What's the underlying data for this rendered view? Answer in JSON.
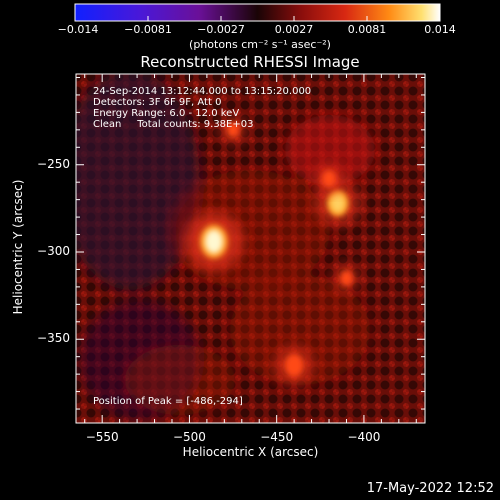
{
  "colorbar": {
    "tick_labels": [
      "-0.014",
      "-0.0081",
      "-0.0027",
      "0.0027",
      "0.0081",
      "0.014"
    ],
    "units_label": "(photons cm⁻² s⁻¹ asec⁻²)",
    "range": [
      -0.014,
      0.014
    ],
    "colors": [
      "#1020ff",
      "#7a18b4",
      "#1a0406",
      "#c81a10",
      "#ff8a14",
      "#ffffff"
    ]
  },
  "chart_data": {
    "type": "heatmap",
    "title": "Reconstructed RHESSI Image",
    "xlabel": "Heliocentric X (arcsec)",
    "ylabel": "Heliocentric Y (arcsec)",
    "xlim": [
      -565,
      -365
    ],
    "ylim": [
      -398,
      -198
    ],
    "xticks": [
      -550,
      -500,
      -450,
      -400
    ],
    "yticks": [
      -250,
      -300,
      -350
    ],
    "xtick_labels": [
      "−550",
      "−500",
      "−450",
      "−400"
    ],
    "ytick_labels": [
      "−250",
      "−300",
      "−350"
    ],
    "sources": [
      {
        "x": -486,
        "y": -294,
        "value": 0.014
      },
      {
        "x": -415,
        "y": -272,
        "value": 0.0095
      },
      {
        "x": -420,
        "y": -258,
        "value": 0.0045
      },
      {
        "x": -440,
        "y": -365,
        "value": 0.0075
      },
      {
        "x": -475,
        "y": -230,
        "value": 0.0035
      },
      {
        "x": -410,
        "y": -315,
        "value": 0.0035
      }
    ],
    "info_lines": [
      "24-Sep-2014 13:12:44.000 to 13:15:20.000",
      "Detectors: 3F 6F 9F, Att 0",
      "Energy Range: 6.0 - 12.0 keV",
      "Clean     Total counts: 9.38E+03"
    ],
    "peak_text": "Position of Peak = [-486,-294]"
  },
  "footer": {
    "date": "17-May-2022 12:52"
  }
}
